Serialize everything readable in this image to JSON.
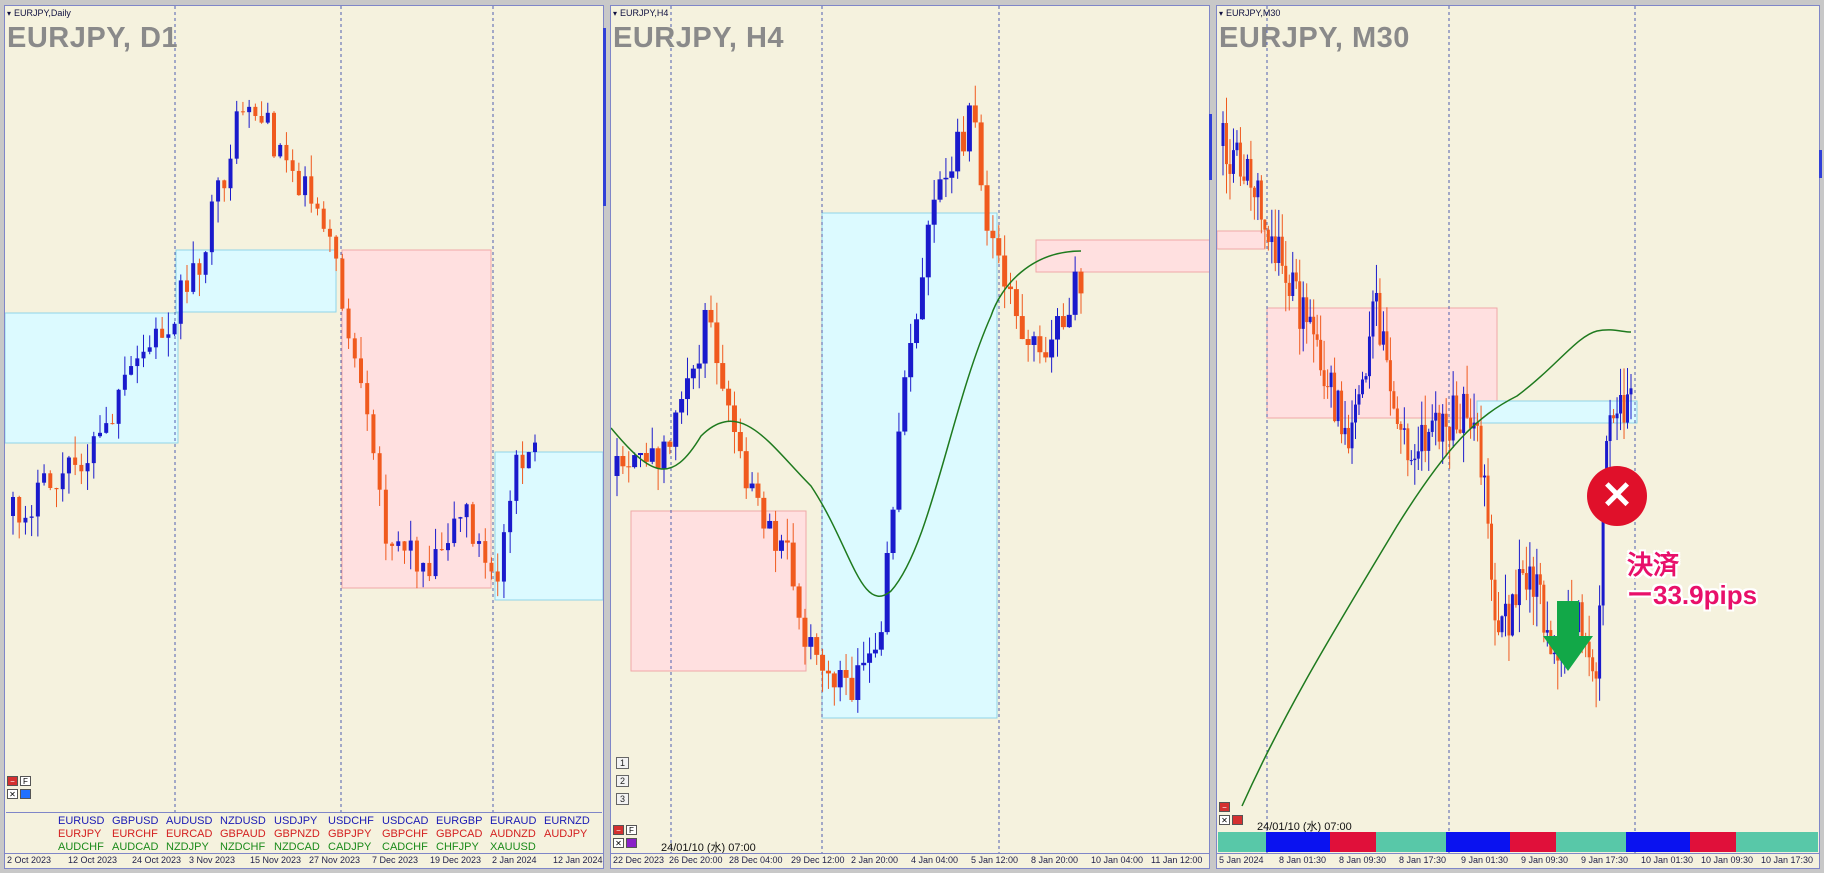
{
  "panes": [
    {
      "id": "d1",
      "title": "EURJPY,Daily",
      "symbol": "EURJPY, D1",
      "xaxis": [
        "2 Oct 2023",
        "12 Oct 2023",
        "24 Oct 2023",
        "3 Nov 2023",
        "15 Nov 2023",
        "27 Nov 2023",
        "7 Dec 2023",
        "19 Dec 2023",
        "2 Jan 2024",
        "12 Jan 2024"
      ]
    },
    {
      "id": "h4",
      "title": "EURJPY,H4",
      "symbol": "EURJPY, H4",
      "xaxis": [
        "22 Dec 2023",
        "26 Dec 20:00",
        "28 Dec 04:00",
        "29 Dec 12:00",
        "2 Jan 20:00",
        "4 Jan 04:00",
        "5 Jan 12:00",
        "8 Jan 20:00",
        "10 Jan 04:00",
        "11 Jan 12:00"
      ],
      "stamp": "24/01/10 (水) 07:00",
      "numbers": [
        "1",
        "2",
        "3"
      ]
    },
    {
      "id": "m30",
      "title": "EURJPY,M30",
      "symbol": "EURJPY, M30",
      "xaxis": [
        "5 Jan 2024",
        "8 Jan 01:30",
        "8 Jan 09:30",
        "8 Jan 17:30",
        "9 Jan 01:30",
        "9 Jan 09:30",
        "9 Jan 17:30",
        "10 Jan 01:30",
        "10 Jan 09:30",
        "10 Jan 17:30"
      ],
      "stamp": "24/01/10 (水) 07:00"
    }
  ],
  "pairs": {
    "row1": [
      "EURUSD",
      "GBPUSD",
      "AUDUSD",
      "NZDUSD",
      "USDJPY",
      "USDCHF",
      "USDCAD",
      "EURGBP",
      "EURAUD",
      "EURNZD"
    ],
    "row2": [
      "EURJPY",
      "EURCHF",
      "EURCAD",
      "GBPAUD",
      "GBPNZD",
      "GBPJPY",
      "GBPCHF",
      "GBPCAD",
      "AUDNZD",
      "AUDJPY"
    ],
    "row3": [
      "AUDCHF",
      "AUDCAD",
      "NZDJPY",
      "NZDCHF",
      "NZDCAD",
      "CADJPY",
      "CADCHF",
      "CHFJPY",
      "XAUUSD"
    ]
  },
  "controls": {
    "f_label": "F",
    "minus_label": "−",
    "x_label": "✕"
  },
  "annotation": {
    "badge_symbol": "✕",
    "settle_label": "決済",
    "settle_value": "ー33.9pips"
  },
  "colors": {
    "bull": "#1a1acc",
    "bear": "#f05a1e",
    "ma": "#1e7a1e",
    "zone_blue": "#dcfaff",
    "zone_pink": "#ffe0e0",
    "grid": "#4f5fb0"
  }
}
